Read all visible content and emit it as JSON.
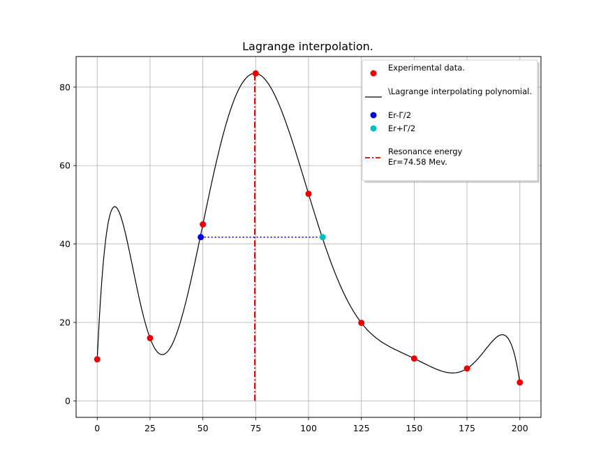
{
  "chart_data": {
    "type": "line",
    "title": "Lagrange interpolation.",
    "xlabel": "",
    "ylabel": "",
    "xlim": [
      -10,
      210
    ],
    "ylim": [
      -4.2,
      87.8
    ],
    "xticks": [
      0,
      25,
      50,
      75,
      100,
      125,
      150,
      175,
      200
    ],
    "yticks": [
      0,
      20,
      40,
      60,
      80
    ],
    "grid": true,
    "legend_position": "top-right",
    "experimental": {
      "name": "Experimental data.",
      "color": "#ee0000",
      "x": [
        0,
        25,
        50,
        75,
        100,
        125,
        150,
        175,
        200
      ],
      "y": [
        10.6,
        16.0,
        45.0,
        83.5,
        52.8,
        19.9,
        10.8,
        8.25,
        4.7
      ]
    },
    "polynomial": {
      "name": "\\Lagrange interpolating polynomial.",
      "color": "#000000"
    },
    "half_width_low": {
      "name": "Er-Γ/2",
      "color": "#0000ee",
      "x": 49.0,
      "y": 41.75
    },
    "half_width_high": {
      "name": "Er+Γ/2",
      "color": "#00bfbf",
      "x": 106.7,
      "y": 41.75
    },
    "resonance": {
      "name_line1": "Resonance energy",
      "name_line2": "Er=74.58 Mev.",
      "color": "#dd0000",
      "x": 74.58,
      "y_from": 0,
      "y_to": 83.5
    }
  }
}
